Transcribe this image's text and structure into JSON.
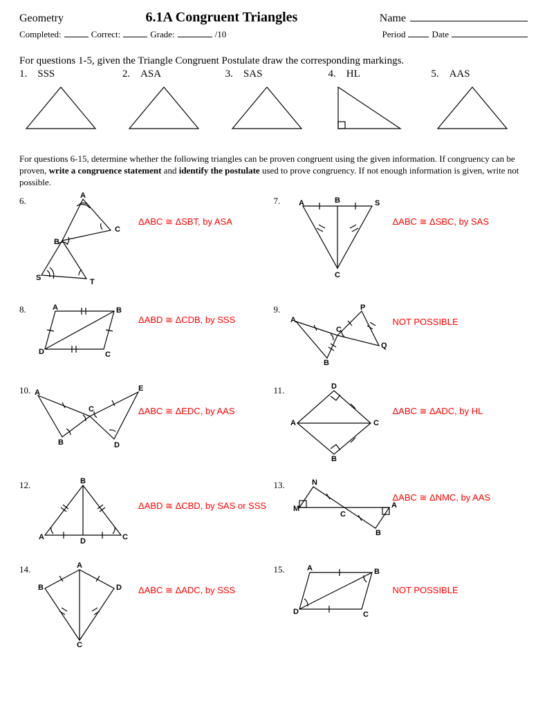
{
  "header": {
    "subject": "Geometry",
    "title": "6.1A Congruent Triangles",
    "name_label": "Name",
    "line2": {
      "completed": "Completed:",
      "correct": "Correct:",
      "grade": "Grade:",
      "grade_suffix": "/10",
      "period": "Period",
      "date": "Date"
    }
  },
  "instruction1": "For questions 1-5, given the Triangle Congruent Postulate draw the corresponding markings.",
  "top_questions": [
    {
      "num": "1.",
      "label": "SSS",
      "type": "equilateral"
    },
    {
      "num": "2.",
      "label": "ASA",
      "type": "equilateral"
    },
    {
      "num": "3.",
      "label": "SAS",
      "type": "equilateral"
    },
    {
      "num": "4.",
      "label": "HL",
      "type": "right"
    },
    {
      "num": "5.",
      "label": "AAS",
      "type": "equilateral"
    }
  ],
  "instruction2_a": "For questions 6-15, determine whether the following triangles can be proven congruent using the given information.  If congruency can be proven, ",
  "instruction2_b": "write a congruence statement",
  "instruction2_c": " and ",
  "instruction2_d": "identify the postulate",
  "instruction2_e": " used to prove congruency.  If not enough information is given, write not possible.",
  "answers": {
    "q6": "ΔABC ≅ ΔSBT, by ASA",
    "q7": "ΔABC ≅ ΔSBC, by SAS",
    "q8": "ΔABD ≅ ΔCDB, by SSS",
    "q9": "NOT POSSIBLE",
    "q10": "ΔABC ≅ ΔEDC, by AAS",
    "q11": "ΔABC ≅ ΔADC, by HL",
    "q12": "ΔABD ≅ ΔCBD, by SAS or SSS",
    "q13": "ΔABC ≅ ΔNMC, by AAS",
    "q14": "ΔABC ≅ ΔADC, by SSS",
    "q15": "NOT POSSIBLE"
  },
  "labels": {
    "A": "A",
    "B": "B",
    "C": "C",
    "D": "D",
    "E": "E",
    "M": "M",
    "N": "N",
    "P": "P",
    "Q": "Q",
    "S": "S",
    "T": "T"
  },
  "qnums": {
    "q6": "6.",
    "q7": "7.",
    "q8": "8.",
    "q9": "9.",
    "q10": "10.",
    "q11": "11.",
    "q12": "12.",
    "q13": "13.",
    "q14": "14.",
    "q15": "15."
  },
  "style": {
    "stroke": "#000000",
    "stroke_width": 1.2,
    "answer_color": "#ff0000",
    "label_font": "bold 11px Arial"
  }
}
